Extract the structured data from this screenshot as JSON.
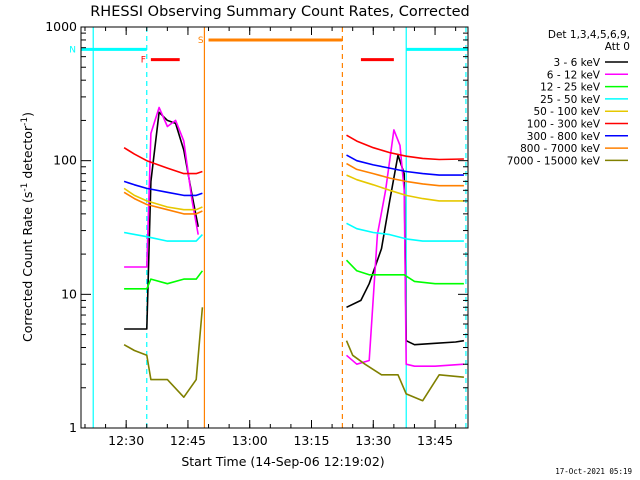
{
  "chart_data": {
    "type": "line",
    "title": "RHESSI Observing Summary Count Rates, Corrected",
    "xlabel": "Start Time (14-Sep-06 12:19:02)",
    "ylabel_main": "Corrected Count Rate (s",
    "ylabel_sup1": "-1",
    "ylabel_mid": " detector",
    "ylabel_sup2": "-1",
    "ylabel_end": ")",
    "ylabel": "Corrected Count Rate (s-1 detector-1)",
    "yscale": "log",
    "ylim": [
      1,
      1000
    ],
    "xlim": [
      "12:19:02",
      "13:53:00"
    ],
    "x_tick_labels": [
      "12:30",
      "12:45",
      "13:00",
      "13:15",
      "13:30",
      "13:45"
    ],
    "y_tick_labels": [
      "1",
      "10",
      "100",
      "1000"
    ],
    "legend_title": [
      "Det 1,3,4,5,6,9,",
      "Att 0"
    ],
    "timestamp": "17-Oct-2021 05:19",
    "series": [
      {
        "name": "3 - 6 keV",
        "color": "#000000",
        "segments": [
          {
            "x": [
              "12:29:30",
              "12:35:00",
              "12:36:00",
              "12:38:00",
              "12:40:00",
              "12:42:00",
              "12:44:00",
              "12:46:00",
              "12:47:30"
            ],
            "y": [
              5.5,
              5.5,
              70,
              230,
              200,
              190,
              120,
              55,
              32
            ]
          },
          {
            "x": [
              "13:23:30",
              "13:27:00",
              "13:29:00",
              "13:32:00",
              "13:34:00",
              "13:36:00",
              "13:37:30",
              "13:38:00",
              "13:40:00",
              "13:45:00",
              "13:50:00",
              "13:52:00"
            ],
            "y": [
              8,
              9,
              12,
              22,
              50,
              110,
              80,
              4.5,
              4.2,
              4.3,
              4.4,
              4.5
            ]
          }
        ]
      },
      {
        "name": "6 - 12 keV",
        "color": "#ff00ff",
        "segments": [
          {
            "x": [
              "12:29:30",
              "12:35:00",
              "12:36:00",
              "12:38:00",
              "12:40:00",
              "12:42:00",
              "12:44:00",
              "12:46:00",
              "12:47:30"
            ],
            "y": [
              16,
              16,
              160,
              250,
              180,
              200,
              140,
              50,
              28
            ]
          },
          {
            "x": [
              "13:23:30",
              "13:26:00",
              "13:29:00",
              "13:31:00",
              "13:33:00",
              "13:35:00",
              "13:36:30",
              "13:37:30",
              "13:38:00",
              "13:40:00",
              "13:45:00",
              "13:52:00"
            ],
            "y": [
              3.5,
              3.0,
              3.2,
              28,
              60,
              170,
              130,
              60,
              3.0,
              2.9,
              2.9,
              3.0
            ]
          }
        ]
      },
      {
        "name": "12 - 25 keV",
        "color": "#00ff00",
        "segments": [
          {
            "x": [
              "12:29:30",
              "12:35:00",
              "12:36:00",
              "12:40:00",
              "12:44:00",
              "12:47:00",
              "12:48:30"
            ],
            "y": [
              11,
              11,
              13,
              12,
              13,
              13,
              15
            ]
          },
          {
            "x": [
              "13:23:30",
              "13:26:00",
              "13:29:00",
              "13:33:00",
              "13:37:30",
              "13:40:00",
              "13:45:00",
              "13:52:00"
            ],
            "y": [
              18,
              15,
              14,
              14,
              14,
              12.5,
              12,
              12
            ]
          }
        ]
      },
      {
        "name": "25 - 50 keV",
        "color": "#00ffff",
        "segments": [
          {
            "x": [
              "12:29:30",
              "12:35:00",
              "12:40:00",
              "12:44:00",
              "12:47:00",
              "12:48:30"
            ],
            "y": [
              29,
              27,
              25,
              25,
              25,
              28
            ]
          },
          {
            "x": [
              "13:23:30",
              "13:26:00",
              "13:30:00",
              "13:34:00",
              "13:38:00",
              "13:42:00",
              "13:46:00",
              "13:52:00"
            ],
            "y": [
              34,
              31,
              29,
              28,
              26,
              25,
              25,
              25
            ]
          }
        ]
      },
      {
        "name": "50 - 100 keV",
        "color": "#e6c800",
        "segments": [
          {
            "x": [
              "12:29:30",
              "12:32:00",
              "12:35:00",
              "12:40:00",
              "12:44:00",
              "12:47:00",
              "12:48:30"
            ],
            "y": [
              62,
              55,
              50,
              45,
              43,
              43,
              45
            ]
          },
          {
            "x": [
              "13:23:30",
              "13:26:00",
              "13:30:00",
              "13:34:00",
              "13:38:00",
              "13:42:00",
              "13:46:00",
              "13:52:00"
            ],
            "y": [
              78,
              72,
              66,
              60,
              55,
              52,
              50,
              50
            ]
          }
        ]
      },
      {
        "name": "100 - 300 keV",
        "color": "#ff0000",
        "segments": [
          {
            "x": [
              "12:29:30",
              "12:32:00",
              "12:35:00",
              "12:40:00",
              "12:44:00",
              "12:47:00",
              "12:48:30"
            ],
            "y": [
              125,
              112,
              100,
              88,
              80,
              80,
              83
            ]
          },
          {
            "x": [
              "13:23:30",
              "13:26:00",
              "13:30:00",
              "13:34:00",
              "13:38:00",
              "13:42:00",
              "13:46:00",
              "13:52:00"
            ],
            "y": [
              155,
              140,
              125,
              115,
              108,
              104,
              102,
              103
            ]
          }
        ]
      },
      {
        "name": "300 - 800 keV",
        "color": "#0000ff",
        "segments": [
          {
            "x": [
              "12:29:30",
              "12:32:00",
              "12:35:00",
              "12:40:00",
              "12:44:00",
              "12:47:00",
              "12:48:30"
            ],
            "y": [
              70,
              66,
              62,
              58,
              55,
              55,
              57
            ]
          },
          {
            "x": [
              "13:23:30",
              "13:26:00",
              "13:30:00",
              "13:34:00",
              "13:38:00",
              "13:42:00",
              "13:46:00",
              "13:52:00"
            ],
            "y": [
              110,
              100,
              93,
              88,
              83,
              80,
              78,
              78
            ]
          }
        ]
      },
      {
        "name": "800 - 7000 keV",
        "color": "#ff8000",
        "segments": [
          {
            "x": [
              "12:29:30",
              "12:32:00",
              "12:35:00",
              "12:40:00",
              "12:44:00",
              "12:47:00",
              "12:48:30"
            ],
            "y": [
              58,
              52,
              47,
              43,
              40,
              40,
              42
            ]
          },
          {
            "x": [
              "13:23:30",
              "13:26:00",
              "13:30:00",
              "13:34:00",
              "13:38:00",
              "13:42:00",
              "13:46:00",
              "13:52:00"
            ],
            "y": [
              95,
              86,
              80,
              74,
              70,
              67,
              65,
              65
            ]
          }
        ]
      },
      {
        "name": "7000 - 15000 keV",
        "color": "#808000",
        "segments": [
          {
            "x": [
              "12:29:30",
              "12:32:00",
              "12:35:00",
              "12:36:00",
              "12:40:00",
              "12:44:00",
              "12:47:00",
              "12:48:30"
            ],
            "y": [
              4.2,
              3.8,
              3.5,
              2.3,
              2.3,
              1.7,
              2.3,
              8
            ]
          },
          {
            "x": [
              "13:23:30",
              "13:25:00",
              "13:28:00",
              "13:32:00",
              "13:36:00",
              "13:38:00",
              "13:42:00",
              "13:46:00",
              "13:52:00"
            ],
            "y": [
              4.5,
              3.5,
              3.0,
              2.5,
              2.5,
              1.8,
              1.6,
              2.5,
              2.4
            ]
          }
        ]
      }
    ],
    "flags": [
      {
        "label": "N",
        "color": "#00ffff",
        "segments": [
          [
            "12:19:02",
            "12:35:00"
          ],
          [
            "13:38:00",
            "13:53:00"
          ]
        ],
        "y": 680
      },
      {
        "label": "F",
        "color": "#ff0000",
        "segments": [
          [
            "12:36:00",
            "12:43:00"
          ],
          [
            "13:27:00",
            "13:35:00"
          ]
        ],
        "y": 570
      },
      {
        "label": "S",
        "color": "#ff8000",
        "segments": [
          [
            "12:50:00",
            "13:22:30"
          ]
        ],
        "y": 800
      }
    ],
    "vlines": [
      {
        "x": "12:22:00",
        "color": "#00ffff",
        "style": "solid"
      },
      {
        "x": "12:35:00",
        "color": "#00ffff",
        "style": "dashed"
      },
      {
        "x": "12:49:00",
        "color": "#ff8000",
        "style": "solid"
      },
      {
        "x": "13:22:30",
        "color": "#ff8000",
        "style": "dashed"
      },
      {
        "x": "13:38:00",
        "color": "#00ffff",
        "style": "solid"
      },
      {
        "x": "13:52:30",
        "color": "#00ffff",
        "style": "dashed"
      }
    ]
  }
}
